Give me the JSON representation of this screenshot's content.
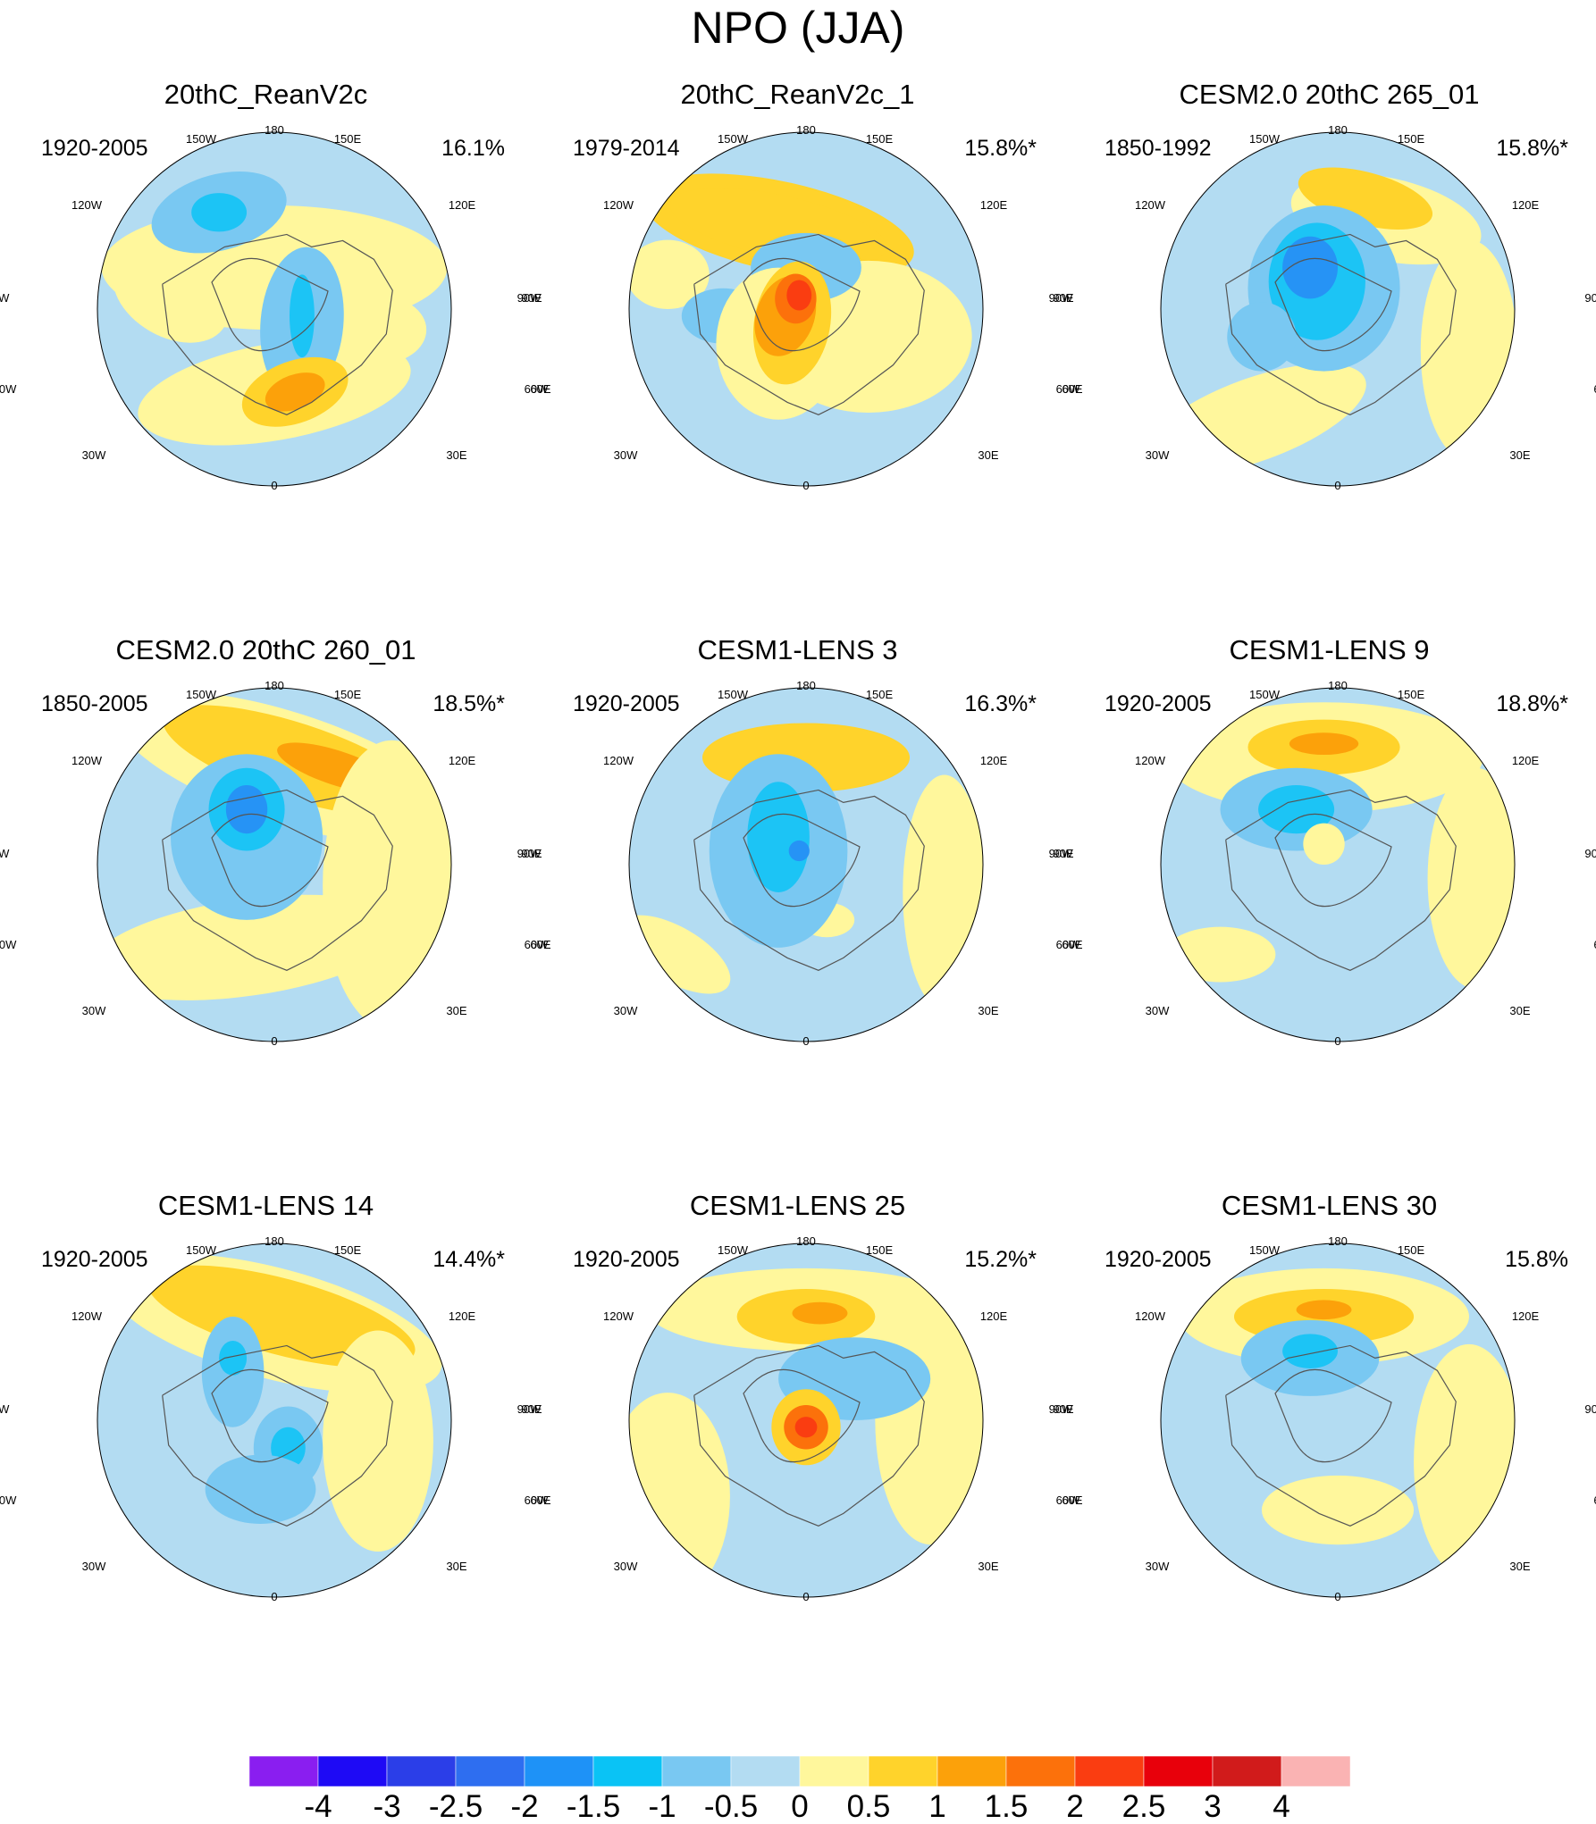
{
  "title": "NPO (JJA)",
  "colors": {
    "ocean_light_blue": "#b3dcf2",
    "blue_1": "#79c8f2",
    "blue_2": "#1cc4f5",
    "blue_3": "#2693f5",
    "pale_yellow": "#fff79c",
    "yellow": "#ffd32b",
    "orange": "#fca10a",
    "red_orange": "#fc710b",
    "red": "#fa3d11",
    "coastline": "#555555"
  },
  "longitude_labels": [
    "180",
    "150W",
    "150E",
    "120W",
    "120E",
    "90W",
    "90E",
    "60W",
    "60E",
    "30W",
    "30E",
    "0"
  ],
  "panels": [
    {
      "title": "20thC_ReanV2c",
      "period": "1920-2005",
      "variance": "16.1%"
    },
    {
      "title": "20thC_ReanV2c_1",
      "period": "1979-2014",
      "variance": "15.8%*"
    },
    {
      "title": "CESM2.0 20thC 265_01",
      "period": "1850-1992",
      "variance": "15.8%*"
    },
    {
      "title": "CESM2.0 20thC 260_01",
      "period": "1850-2005",
      "variance": "18.5%*"
    },
    {
      "title": "CESM1-LENS 3",
      "period": "1920-2005",
      "variance": "16.3%*"
    },
    {
      "title": "CESM1-LENS 9",
      "period": "1920-2005",
      "variance": "18.8%*"
    },
    {
      "title": "CESM1-LENS 14",
      "period": "1920-2005",
      "variance": "14.4%*"
    },
    {
      "title": "CESM1-LENS 25",
      "period": "1920-2005",
      "variance": "15.2%*"
    },
    {
      "title": "CESM1-LENS 30",
      "period": "1920-2005",
      "variance": "15.8%"
    }
  ],
  "colorbar": {
    "labels": [
      "-4",
      "-3",
      "-2.5",
      "-2",
      "-1.5",
      "-1",
      "-0.5",
      "0",
      "0.5",
      "1",
      "1.5",
      "2",
      "2.5",
      "3",
      "4"
    ],
    "colors": [
      "#8a1ef0",
      "#1e0af5",
      "#2b3ee8",
      "#2e6ef0",
      "#1e92f7",
      "#0ac3f5",
      "#79c8f2",
      "#b3dcf2",
      "#fff79c",
      "#ffd32b",
      "#fca10a",
      "#fc710b",
      "#fa3d11",
      "#e8000b",
      "#d11b1b",
      "#fab3b3"
    ]
  }
}
